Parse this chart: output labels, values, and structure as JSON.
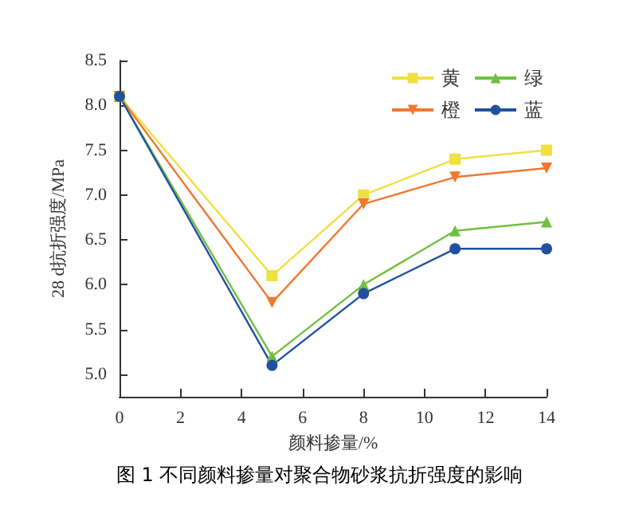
{
  "chart_data": {
    "type": "line",
    "title": "图 1 不同颜料掺量对聚合物砂浆抗折强度的影响",
    "xlabel": "颜料掺量/%",
    "ylabel": "28 d抗折强度/MPa",
    "x": [
      0,
      5,
      8,
      11,
      14
    ],
    "series": [
      {
        "name": "黄",
        "color": "#f0e040",
        "marker": "square",
        "values": [
          8.1,
          6.1,
          7.0,
          7.4,
          7.5
        ]
      },
      {
        "name": "橙",
        "color": "#f07830",
        "marker": "triangle-down",
        "values": [
          8.1,
          5.8,
          6.9,
          7.2,
          7.3
        ]
      },
      {
        "name": "绿",
        "color": "#70c040",
        "marker": "triangle",
        "values": [
          8.1,
          5.2,
          6.0,
          6.6,
          6.7
        ]
      },
      {
        "name": "蓝",
        "color": "#2050a0",
        "marker": "circle",
        "values": [
          8.1,
          5.1,
          5.9,
          6.4,
          6.4
        ]
      }
    ],
    "xlim": [
      0,
      14
    ],
    "xticks": [
      0,
      2,
      4,
      6,
      8,
      10,
      12,
      14
    ],
    "ylim": [
      4.75,
      8.5
    ],
    "yticks": [
      {
        "value": 5,
        "label": "5.0"
      },
      {
        "value": 5.5,
        "label": "5.5"
      },
      {
        "value": 6,
        "label": "6.0"
      },
      {
        "value": 6.5,
        "label": "6.5"
      },
      {
        "value": 7,
        "label": "7.0"
      },
      {
        "value": 7.5,
        "label": "7.5"
      },
      {
        "value": 8,
        "label": "8.0"
      },
      {
        "value": 8.5,
        "label": "8.5"
      }
    ],
    "grid": false,
    "legend": "top right",
    "line_style": "solid"
  }
}
